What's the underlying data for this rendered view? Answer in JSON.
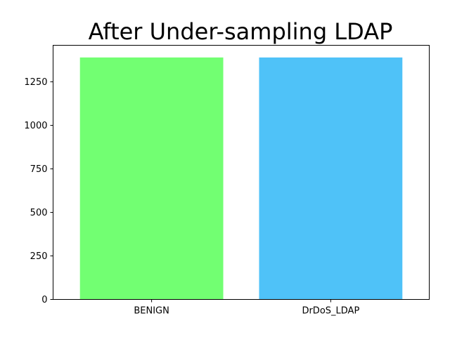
{
  "chart_data": {
    "type": "bar",
    "title": "After Under-sampling LDAP",
    "xlabel": "",
    "ylabel": "",
    "categories": [
      "BENIGN",
      "DrDoS_LDAP"
    ],
    "values": [
      1390,
      1390
    ],
    "colors": [
      "#72ff72",
      "#4fc2f8"
    ],
    "ylim": [
      0,
      1460
    ],
    "yticks": [
      0,
      250,
      500,
      750,
      1000,
      1250
    ],
    "grid": false,
    "legend": "none"
  }
}
